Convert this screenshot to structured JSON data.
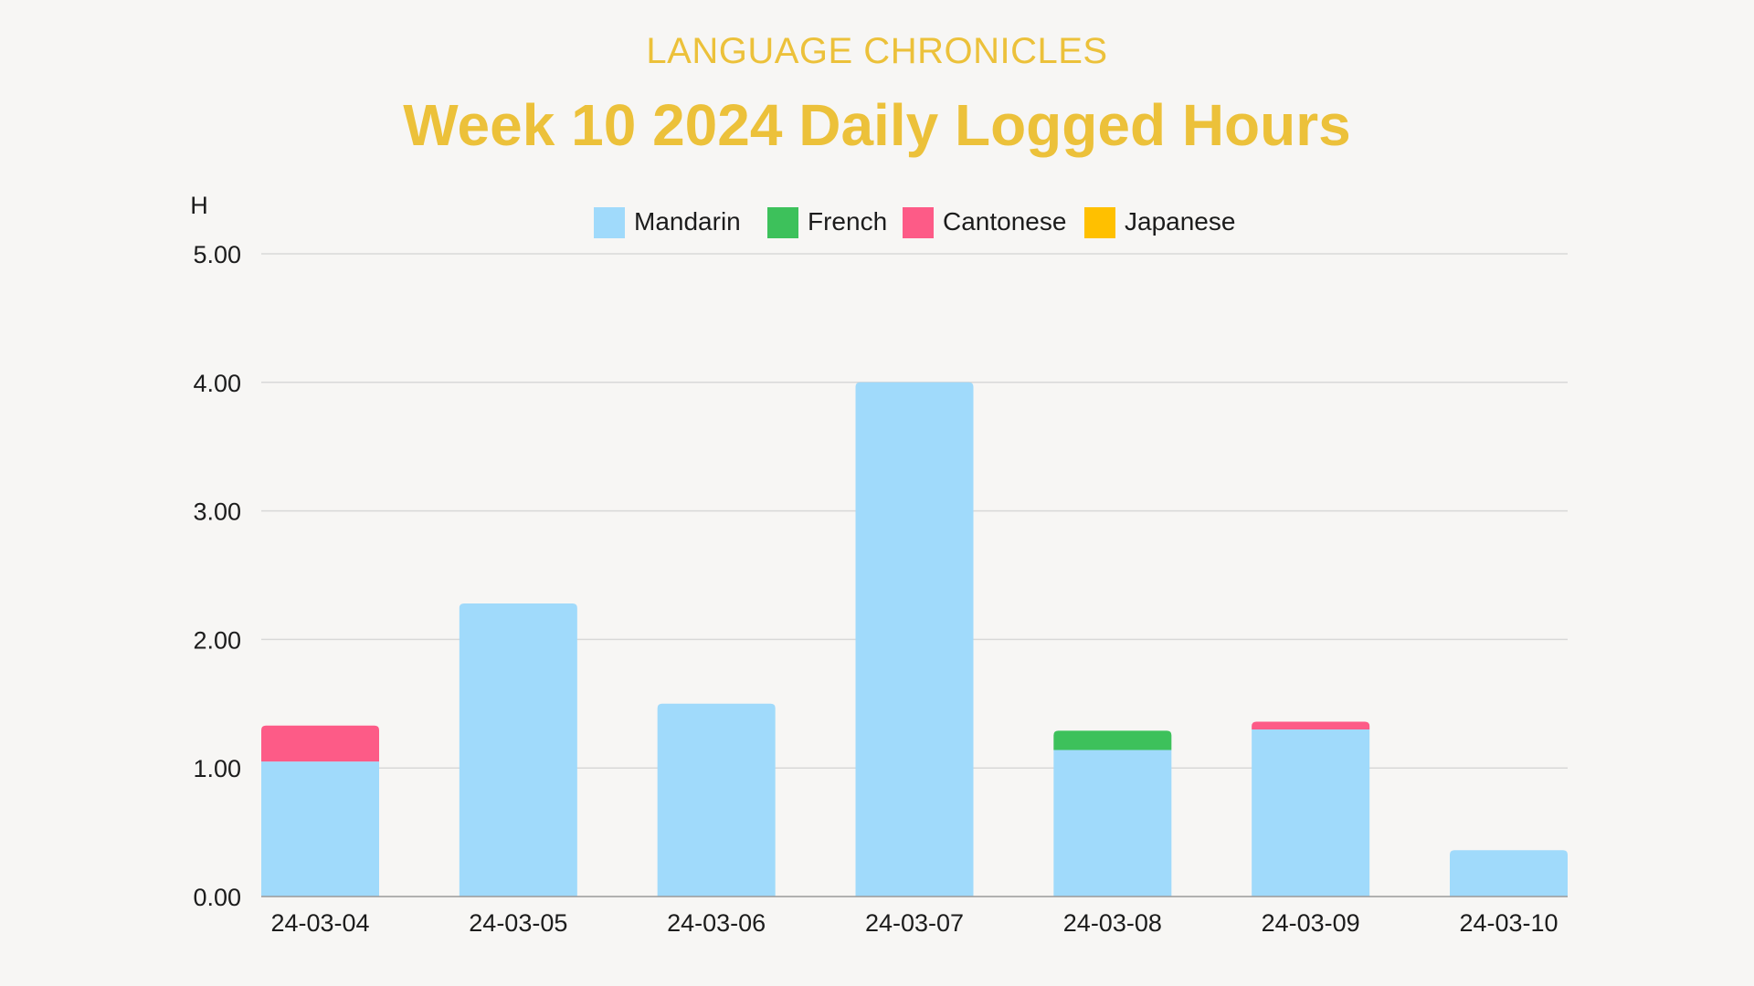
{
  "header": {
    "brand": "LANGUAGE CHRONICLES",
    "title": "Week 10 2024 Daily Logged Hours"
  },
  "chart_data": {
    "type": "bar",
    "stacked": true,
    "title": "Week 10 2024 Daily Logged Hours",
    "xlabel": "",
    "ylabel": "H",
    "ylim": [
      0,
      5
    ],
    "yticks": [
      "0.00",
      "1.00",
      "2.00",
      "3.00",
      "4.00",
      "5.00"
    ],
    "grid": true,
    "legend_position": "top-center",
    "categories": [
      "24-03-04",
      "24-03-05",
      "24-03-06",
      "24-03-07",
      "24-03-08",
      "24-03-09",
      "24-03-10"
    ],
    "series": [
      {
        "name": "Mandarin",
        "color": "#a0dafb",
        "values": [
          1.05,
          2.28,
          1.5,
          4.0,
          1.14,
          1.3,
          0.36
        ]
      },
      {
        "name": "French",
        "color": "#3dc15b",
        "values": [
          0,
          0,
          0,
          0,
          0.15,
          0,
          0
        ]
      },
      {
        "name": "Cantonese",
        "color": "#fd5b87",
        "values": [
          0.28,
          0,
          0,
          0,
          0,
          0.06,
          0
        ]
      },
      {
        "name": "Japanese",
        "color": "#ffc000",
        "values": [
          0,
          0,
          0,
          0,
          0,
          0,
          0
        ]
      }
    ]
  }
}
